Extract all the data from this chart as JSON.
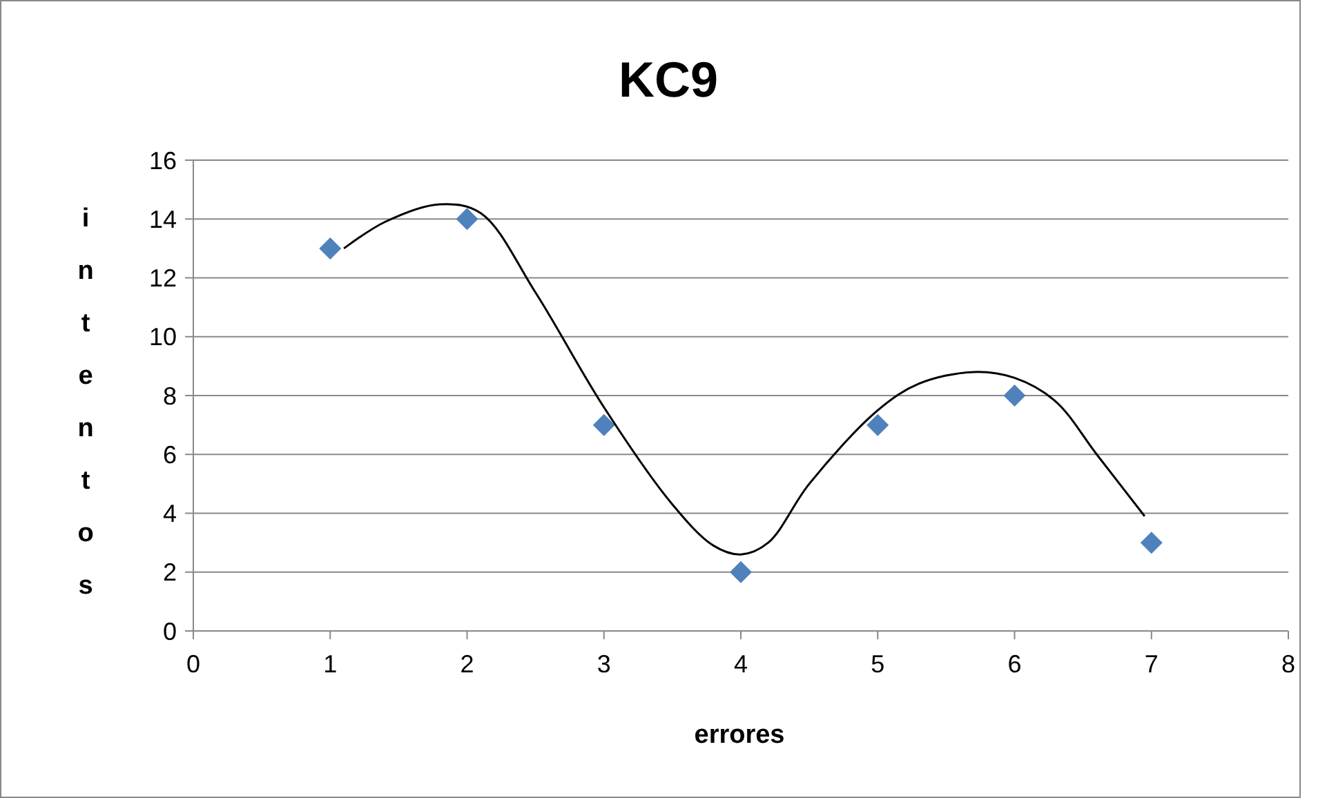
{
  "chart_data": {
    "type": "scatter",
    "title": "KC9",
    "xlabel": "errores",
    "ylabel": "intentos",
    "xlim": [
      0,
      8
    ],
    "xticks": [
      0,
      1,
      2,
      3,
      4,
      5,
      6,
      7,
      8
    ],
    "ylim": [
      0,
      16
    ],
    "yticks": [
      0,
      2,
      4,
      6,
      8,
      10,
      12,
      14,
      16
    ],
    "grid": "y",
    "series": [
      {
        "color": "#4f81bd",
        "marker": "diamond",
        "x": [
          1,
          2,
          3,
          4,
          5,
          6,
          7
        ],
        "values": [
          13,
          14,
          7,
          2,
          7,
          8,
          3
        ]
      },
      {
        "type": "line",
        "color": "#000000",
        "marker": "none",
        "line_style": "solid",
        "x": [
          1.1,
          1.4,
          1.8,
          2.1,
          2.5,
          3,
          3.5,
          3.8,
          4,
          4.2,
          4.5,
          5,
          5.3,
          5.7,
          6,
          6.3,
          6.6,
          6.95
        ],
        "values": [
          13.0,
          13.9,
          14.5,
          14.2,
          11.5,
          7.6,
          4.3,
          2.9,
          2.6,
          3.0,
          5.0,
          7.5,
          8.4,
          8.8,
          8.6,
          7.8,
          6.0,
          3.9
        ]
      }
    ]
  }
}
